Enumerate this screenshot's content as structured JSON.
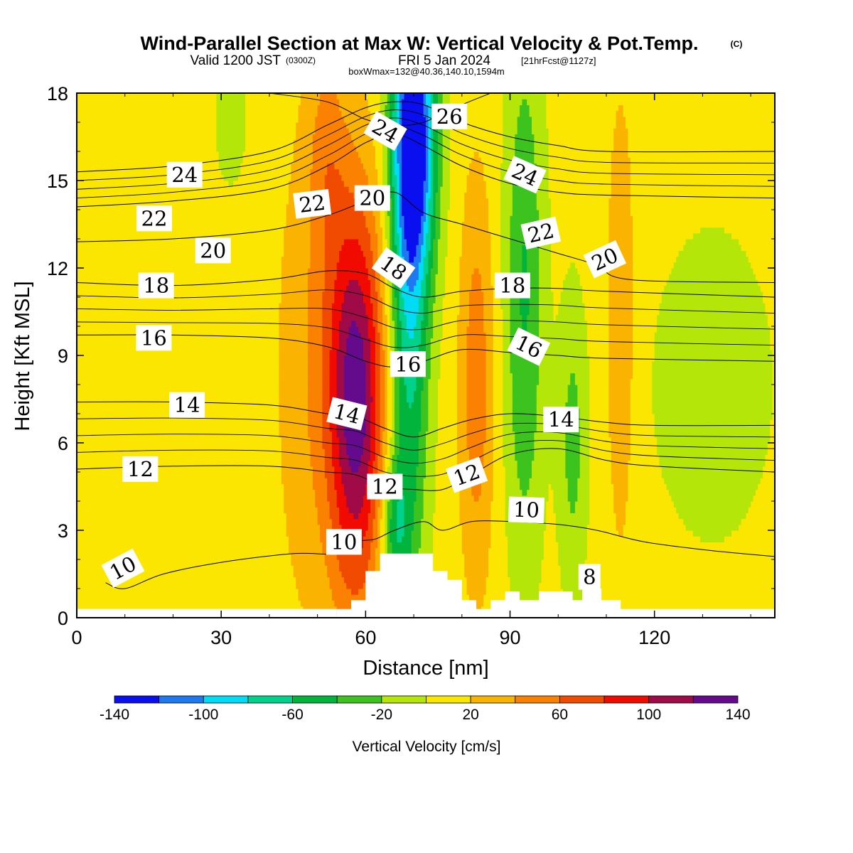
{
  "title": "Wind-Parallel Section at Max W: Vertical Velocity & Pot.Temp.",
  "title_mark": "(C)",
  "subtitle": {
    "a": "Valid 1200 JST",
    "b": "(0300Z)",
    "c": "FRI 5 Jan 2024",
    "d": "[21hrFcst@1127z]"
  },
  "subtitle2": "boxWmax=132@40.36,140.10,1594m",
  "chart_data": {
    "type": "heatmap",
    "xlabel": "Distance [nm]",
    "ylabel": "Height [Kft MSL]",
    "xlim": [
      0,
      145
    ],
    "ylim": [
      0,
      18
    ],
    "x_ticks": [
      "0",
      "30",
      "60",
      "90",
      "120"
    ],
    "y_ticks": [
      "0",
      "3",
      "6",
      "9",
      "12",
      "15",
      "18"
    ],
    "fill_variable": "Vertical Velocity [cm/s]",
    "contour_variable": "Potential Temperature",
    "colorbar": {
      "label": "Vertical Velocity [cm/s]",
      "bounds": [
        -140,
        -120,
        -100,
        -80,
        -60,
        -40,
        -20,
        0,
        20,
        40,
        60,
        80,
        100,
        120,
        140
      ],
      "tick_labels": [
        "-140",
        "-100",
        "-60",
        "-20",
        "20",
        "60",
        "100",
        "140"
      ],
      "colors": [
        "#0a0ff0",
        "#1e78f0",
        "#00dcf5",
        "#00d28c",
        "#00b43c",
        "#3cc31e",
        "#b4e60a",
        "#fae600",
        "#fab400",
        "#fa8200",
        "#f04b00",
        "#f00a00",
        "#a00a46",
        "#640a8c"
      ]
    },
    "terrain_kft": [
      [
        54,
        0.3
      ],
      [
        57,
        0.3
      ],
      [
        57,
        0.6
      ],
      [
        60,
        0.6
      ],
      [
        60,
        1.6
      ],
      [
        63,
        1.6
      ],
      [
        63,
        2.2
      ],
      [
        74,
        2.2
      ],
      [
        74,
        1.6
      ],
      [
        77,
        1.6
      ],
      [
        77,
        1.3
      ],
      [
        80,
        1.3
      ],
      [
        80,
        0.6
      ],
      [
        83,
        0.6
      ],
      [
        83,
        0.3
      ],
      [
        86,
        0.3
      ],
      [
        86,
        0.6
      ],
      [
        89,
        0.6
      ],
      [
        89,
        0.9
      ],
      [
        92,
        0.9
      ],
      [
        92,
        0.6
      ],
      [
        96,
        0.6
      ],
      [
        96,
        0.9
      ],
      [
        103,
        0.9
      ],
      [
        103,
        0.6
      ],
      [
        105,
        0.6
      ],
      [
        105,
        1.0
      ],
      [
        109,
        1.0
      ],
      [
        109,
        0.6
      ],
      [
        113,
        0.6
      ],
      [
        113,
        0.3
      ],
      [
        145,
        0.3
      ]
    ],
    "theta_contours": [
      {
        "label": "10",
        "pts": [
          [
            6,
            1.2
          ],
          [
            10,
            1.0
          ],
          [
            18,
            1.5
          ],
          [
            30,
            1.9
          ],
          [
            45,
            2.2
          ],
          [
            54,
            2.2
          ],
          [
            58,
            2.6
          ],
          [
            62,
            2.7
          ],
          [
            66,
            3.0
          ],
          [
            72,
            3.3
          ],
          [
            76,
            3.0
          ],
          [
            82,
            3.3
          ],
          [
            90,
            3.3
          ],
          [
            100,
            3.2
          ],
          [
            108,
            3.0
          ],
          [
            118,
            2.6
          ],
          [
            132,
            2.3
          ],
          [
            145,
            2.1
          ]
        ]
      },
      {
        "label": "12",
        "pts": [
          [
            0,
            5.1
          ],
          [
            20,
            5.2
          ],
          [
            40,
            5.2
          ],
          [
            52,
            5.0
          ],
          [
            58,
            4.9
          ],
          [
            64,
            4.5
          ],
          [
            70,
            4.4
          ],
          [
            76,
            4.4
          ],
          [
            82,
            4.9
          ],
          [
            90,
            5.6
          ],
          [
            100,
            5.8
          ],
          [
            110,
            5.4
          ],
          [
            120,
            5.2
          ],
          [
            145,
            5.0
          ]
        ]
      },
      {
        "label": "14",
        "pts": [
          [
            0,
            7.4
          ],
          [
            20,
            7.4
          ],
          [
            40,
            7.3
          ],
          [
            52,
            7.0
          ],
          [
            58,
            6.9
          ],
          [
            64,
            6.5
          ],
          [
            70,
            6.2
          ],
          [
            76,
            6.5
          ],
          [
            82,
            6.8
          ],
          [
            90,
            7.0
          ],
          [
            100,
            6.9
          ],
          [
            110,
            6.7
          ],
          [
            120,
            6.6
          ],
          [
            145,
            6.6
          ]
        ]
      },
      {
        "label": "16",
        "pts": [
          [
            0,
            9.7
          ],
          [
            20,
            9.7
          ],
          [
            40,
            9.6
          ],
          [
            52,
            9.3
          ],
          [
            60,
            8.8
          ],
          [
            66,
            8.6
          ],
          [
            72,
            8.8
          ],
          [
            80,
            9.2
          ],
          [
            90,
            9.1
          ],
          [
            100,
            9.0
          ],
          [
            110,
            8.9
          ],
          [
            145,
            8.8
          ]
        ]
      },
      {
        "label": "18",
        "pts": [
          [
            0,
            11.5
          ],
          [
            20,
            11.4
          ],
          [
            40,
            11.6
          ],
          [
            52,
            11.9
          ],
          [
            60,
            11.8
          ],
          [
            66,
            11.3
          ],
          [
            72,
            11.0
          ],
          [
            80,
            11.2
          ],
          [
            90,
            11.3
          ],
          [
            100,
            11.3
          ],
          [
            110,
            11.2
          ],
          [
            145,
            11.0
          ]
        ]
      },
      {
        "label": "20",
        "pts": [
          [
            0,
            12.9
          ],
          [
            20,
            13.0
          ],
          [
            40,
            13.3
          ],
          [
            52,
            13.8
          ],
          [
            60,
            14.3
          ],
          [
            66,
            14.6
          ],
          [
            72,
            13.9
          ],
          [
            80,
            13.5
          ],
          [
            90,
            13.0
          ],
          [
            100,
            12.5
          ],
          [
            108,
            12.1
          ],
          [
            115,
            11.6
          ],
          [
            145,
            11.5
          ]
        ]
      },
      {
        "label": "22",
        "pts": [
          [
            0,
            14.1
          ],
          [
            20,
            14.3
          ],
          [
            40,
            14.7
          ],
          [
            52,
            15.5
          ],
          [
            60,
            16.3
          ],
          [
            66,
            16.6
          ],
          [
            72,
            16.2
          ],
          [
            80,
            15.5
          ],
          [
            90,
            14.9
          ],
          [
            100,
            14.6
          ],
          [
            110,
            14.5
          ],
          [
            145,
            14.4
          ]
        ]
      },
      {
        "label": "24",
        "pts": [
          [
            0,
            15.3
          ],
          [
            20,
            15.5
          ],
          [
            40,
            16.0
          ],
          [
            52,
            16.9
          ],
          [
            60,
            17.5
          ],
          [
            66,
            17.7
          ],
          [
            72,
            17.6
          ],
          [
            80,
            17.0
          ],
          [
            90,
            16.5
          ],
          [
            100,
            16.2
          ],
          [
            110,
            16.0
          ],
          [
            145,
            16.0
          ]
        ]
      },
      {
        "label": "26",
        "pts": [
          [
            40,
            18.0
          ],
          [
            52,
            17.7
          ],
          [
            60,
            17.1
          ],
          [
            66,
            16.9
          ],
          [
            72,
            17.0
          ],
          [
            80,
            17.6
          ],
          [
            86,
            18.0
          ]
        ]
      }
    ],
    "contour_labels": [
      {
        "text": "10",
        "x": 9.6,
        "y": 1.7,
        "rot": -28
      },
      {
        "text": "10",
        "x": 55.5,
        "y": 2.6,
        "rot": 0
      },
      {
        "text": "10",
        "x": 93.4,
        "y": 3.7,
        "rot": 2
      },
      {
        "text": "8",
        "x": 106.5,
        "y": 1.4,
        "rot": 0
      },
      {
        "text": "12",
        "x": 13.2,
        "y": 5.1,
        "rot": 0
      },
      {
        "text": "12",
        "x": 64.0,
        "y": 4.5,
        "rot": 0
      },
      {
        "text": "12",
        "x": 81.0,
        "y": 4.9,
        "rot": -20
      },
      {
        "text": "14",
        "x": 22.9,
        "y": 7.3,
        "rot": 0
      },
      {
        "text": "14",
        "x": 56.1,
        "y": 7.0,
        "rot": 14
      },
      {
        "text": "14",
        "x": 100.6,
        "y": 6.8,
        "rot": 0
      },
      {
        "text": "16",
        "x": 16.0,
        "y": 9.6,
        "rot": 0
      },
      {
        "text": "16",
        "x": 68.8,
        "y": 8.7,
        "rot": 0
      },
      {
        "text": "16",
        "x": 93.9,
        "y": 9.3,
        "rot": 26
      },
      {
        "text": "18",
        "x": 16.5,
        "y": 11.4,
        "rot": 0
      },
      {
        "text": "18",
        "x": 65.8,
        "y": 12.0,
        "rot": 35
      },
      {
        "text": "18",
        "x": 90.5,
        "y": 11.4,
        "rot": 0
      },
      {
        "text": "20",
        "x": 28.3,
        "y": 12.6,
        "rot": 0
      },
      {
        "text": "20",
        "x": 61.4,
        "y": 14.4,
        "rot": 0
      },
      {
        "text": "20",
        "x": 109.7,
        "y": 12.3,
        "rot": -25
      },
      {
        "text": "22",
        "x": 16.1,
        "y": 13.7,
        "rot": 0
      },
      {
        "text": "22",
        "x": 48.9,
        "y": 14.2,
        "rot": -7
      },
      {
        "text": "22",
        "x": 96.4,
        "y": 13.2,
        "rot": -13
      },
      {
        "text": "24",
        "x": 22.4,
        "y": 15.2,
        "rot": 0
      },
      {
        "text": "24",
        "x": 64.1,
        "y": 16.7,
        "rot": 30
      },
      {
        "text": "24",
        "x": 93.1,
        "y": 15.2,
        "rot": 24
      },
      {
        "text": "26",
        "x": 77.4,
        "y": 17.2,
        "rot": 0
      }
    ]
  }
}
